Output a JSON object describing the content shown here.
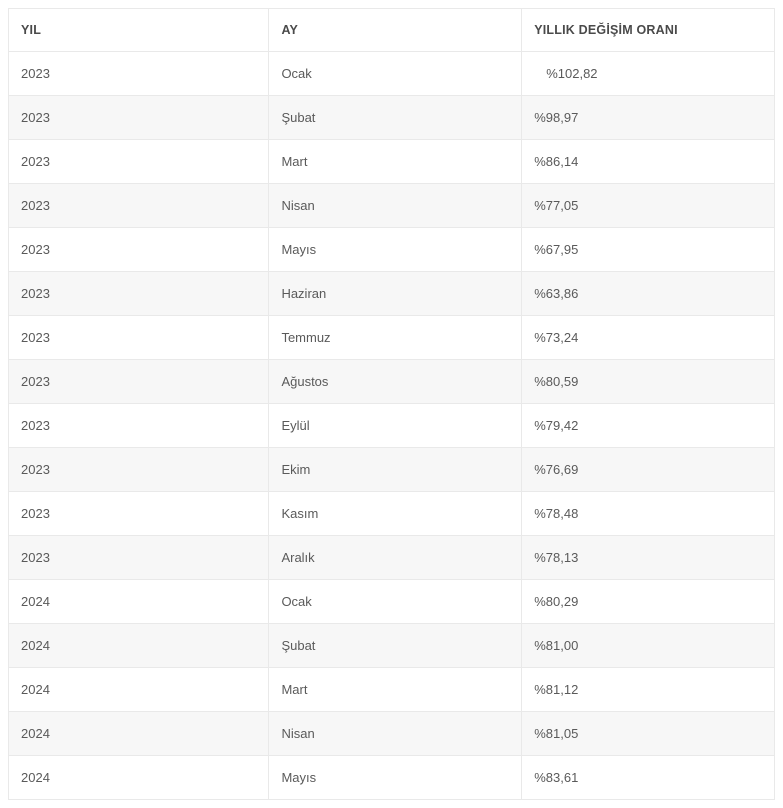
{
  "table": {
    "type": "table",
    "background_color": "#ffffff",
    "alt_row_color": "#f7f7f7",
    "border_color": "#e9e9e9",
    "text_color": "#5a5a5a",
    "header_text_color": "#4a4a4a",
    "font_size_pt": 10,
    "header_font_size_pt": 9.5,
    "columns": [
      {
        "key": "yil",
        "label": "YIL",
        "width_pct": 34,
        "align": "left"
      },
      {
        "key": "ay",
        "label": "AY",
        "width_pct": 33,
        "align": "left"
      },
      {
        "key": "oran",
        "label": "YILLIK DEĞİŞİM ORANI",
        "width_pct": 33,
        "align": "left"
      }
    ],
    "rows": [
      {
        "yil": "2023",
        "ay": "Ocak",
        "oran": "  %102,82",
        "oran_indent": true
      },
      {
        "yil": "2023",
        "ay": "Şubat",
        "oran": "%98,97"
      },
      {
        "yil": "2023",
        "ay": "Mart",
        "oran": "%86,14"
      },
      {
        "yil": "2023",
        "ay": "Nisan",
        "oran": "%77,05"
      },
      {
        "yil": "2023",
        "ay": "Mayıs",
        "oran": "%67,95"
      },
      {
        "yil": "2023",
        "ay": "Haziran",
        "oran": "%63,86"
      },
      {
        "yil": "2023",
        "ay": "Temmuz",
        "oran": "%73,24"
      },
      {
        "yil": "2023",
        "ay": "Ağustos",
        "oran": "%80,59"
      },
      {
        "yil": "2023",
        "ay": "Eylül",
        "oran": "%79,42"
      },
      {
        "yil": "2023",
        "ay": "Ekim",
        "oran": "%76,69"
      },
      {
        "yil": "2023",
        "ay": "Kasım",
        "oran": "%78,48"
      },
      {
        "yil": "2023",
        "ay": "Aralık",
        "oran": "%78,13"
      },
      {
        "yil": "2024",
        "ay": "Ocak",
        "oran": "%80,29"
      },
      {
        "yil": "2024",
        "ay": "Şubat",
        "oran": "%81,00"
      },
      {
        "yil": "2024",
        "ay": "Mart",
        "oran": "%81,12"
      },
      {
        "yil": "2024",
        "ay": "Nisan",
        "oran": "%81,05"
      },
      {
        "yil": "2024",
        "ay": "Mayıs",
        "oran": "%83,61"
      }
    ]
  }
}
